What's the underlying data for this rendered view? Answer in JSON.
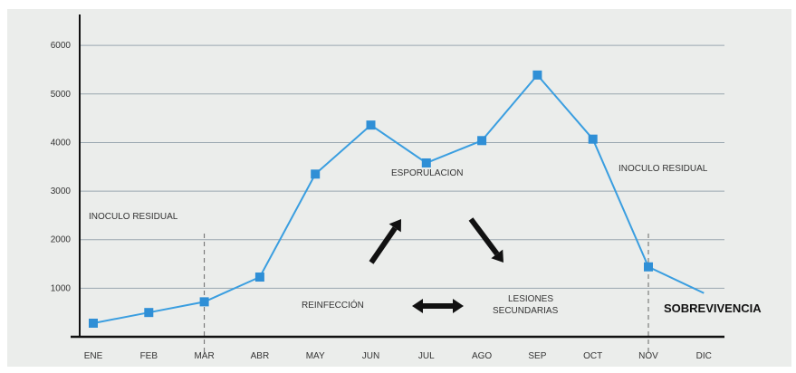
{
  "chart_data": {
    "type": "line",
    "categories": [
      "ENE",
      "FEB",
      "MAR",
      "ABR",
      "MAY",
      "JUN",
      "JUL",
      "AGO",
      "SEP",
      "OCT",
      "NOV",
      "DIC"
    ],
    "x": [
      "ENE",
      "FEB",
      "MAR",
      "ABR",
      "MAY",
      "JUN",
      "JUL",
      "AGO",
      "SEP",
      "OCT",
      "NOV",
      "DIC"
    ],
    "series": [
      {
        "values": [
          280,
          500,
          720,
          1230,
          3350,
          4360,
          3580,
          4040,
          5390,
          4070,
          1440,
          900
        ]
      }
    ],
    "title": "",
    "xlabel": "",
    "ylabel": "",
    "ylim": [
      0,
      6300
    ],
    "yticks": [
      1000,
      2000,
      3000,
      4000,
      5000,
      6000
    ],
    "ytick_labels": [
      "1000",
      "2000",
      "3000",
      "4000",
      "5000",
      "6000"
    ],
    "grid": "horizontal",
    "legend": "none",
    "colors": {
      "line": "#3a9ee0",
      "marker": "#2f8fd6",
      "grid": "#9aa7b0",
      "background": "#ebedeb",
      "axis": "#111111",
      "arrow": "#111111"
    },
    "annotations": [
      {
        "id": "inoculo-left",
        "text": "INOCULO RESIDUAL"
      },
      {
        "id": "inoculo-right",
        "text": "INOCULO RESIDUAL"
      },
      {
        "id": "esporulacion",
        "text": "ESPORULACION"
      },
      {
        "id": "reinfeccion",
        "text": "REINFECCIÓN"
      },
      {
        "id": "lesiones-1",
        "text": "LESIONES"
      },
      {
        "id": "lesiones-2",
        "text": "SECUNDARIAS"
      },
      {
        "id": "sobrevivencia",
        "text": "SOBREVIVENCIA"
      }
    ],
    "markers_shown_for": [
      "ENE",
      "FEB",
      "MAR",
      "ABR",
      "MAY",
      "JUN",
      "JUL",
      "AGO",
      "SEP",
      "OCT",
      "NOV"
    ],
    "dashed_guides_at": [
      "MAR",
      "NOV"
    ]
  }
}
